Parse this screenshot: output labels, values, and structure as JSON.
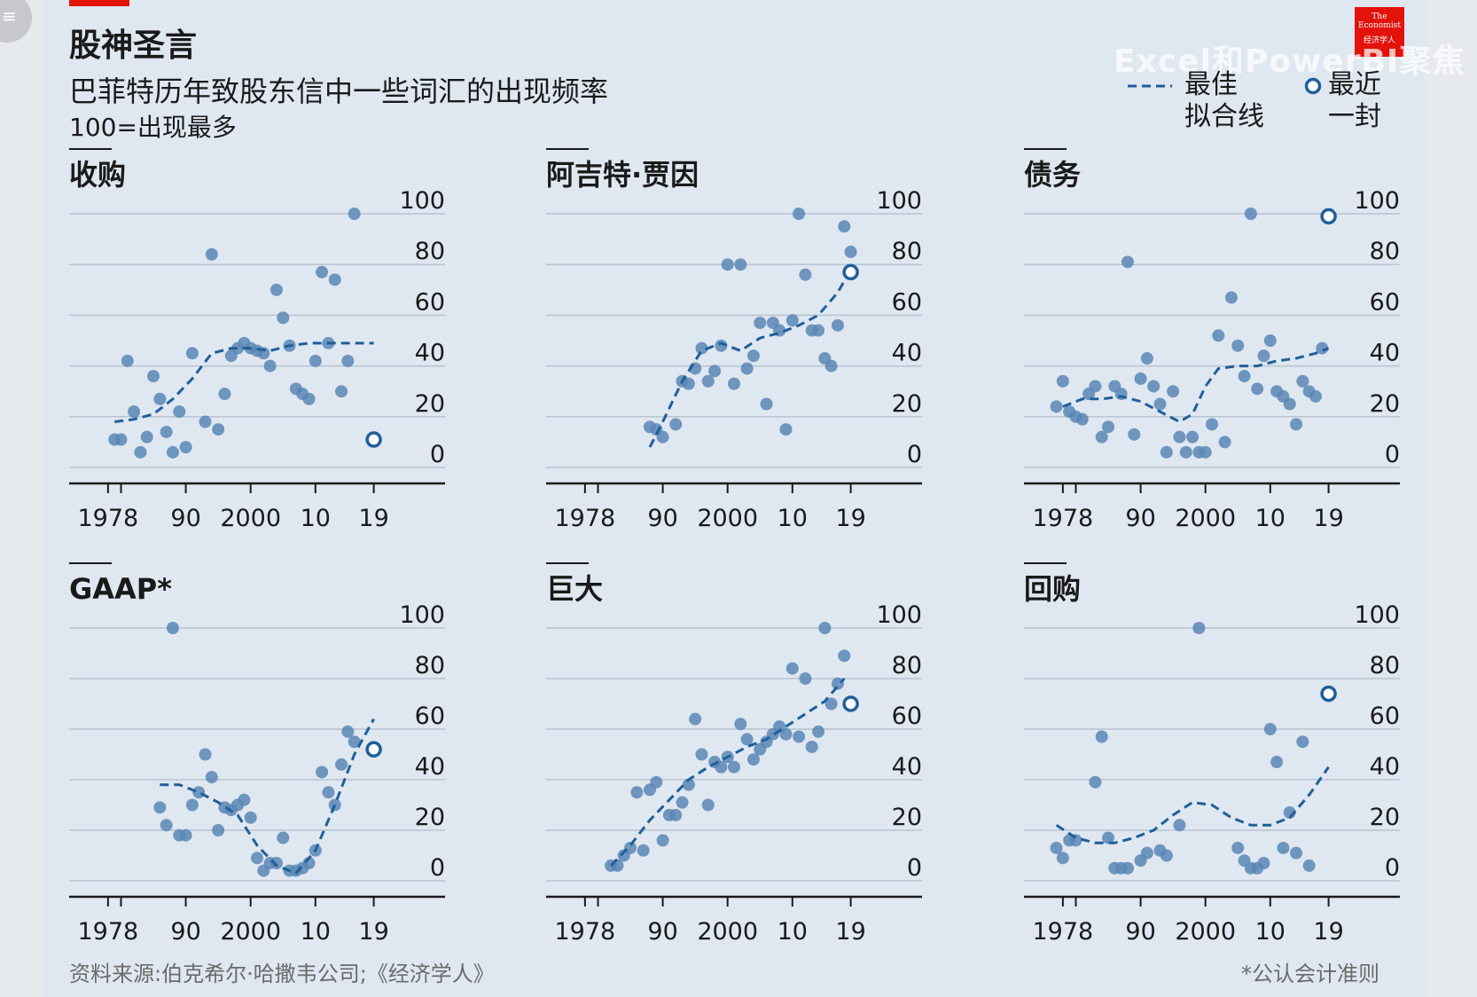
{
  "header": {
    "title": "股神圣言",
    "subtitle": "巴菲特历年致股东信中一些词汇的出现频率",
    "note": "100=出现最多"
  },
  "legend": {
    "fit_label_1": "最佳",
    "fit_label_2": "拟合线",
    "recent_label_1": "最近",
    "recent_label_2": "一封"
  },
  "footer": {
    "source": "资料来源:伯克希尔·哈撒韦公司;《经济学人》",
    "footnote": "*公认会计准则"
  },
  "logo": {
    "line1": "The Economist",
    "line2": "经济学人"
  },
  "watermark": "Excel和PowerBI聚焦",
  "colors": {
    "dot": "#5b86b4",
    "line": "#1f5f99",
    "axis": "#1a1a1a",
    "grid": "#b8c4d1",
    "accent": "#e3120b"
  },
  "chart_data": [
    {
      "type": "scatter",
      "title": "收购",
      "xticks": [
        1978,
        1990,
        2000,
        2010,
        2019
      ],
      "xtick_labels": [
        "1978",
        "90",
        "2000",
        "10",
        "19"
      ],
      "yticks": [
        0,
        20,
        40,
        60,
        80,
        100
      ],
      "xlim": [
        1972,
        2030
      ],
      "ylim": [
        0,
        100
      ],
      "points": [
        [
          1979,
          11
        ],
        [
          1980,
          11
        ],
        [
          1981,
          42
        ],
        [
          1982,
          22
        ],
        [
          1983,
          6
        ],
        [
          1984,
          12
        ],
        [
          1985,
          36
        ],
        [
          1986,
          27
        ],
        [
          1987,
          14
        ],
        [
          1988,
          6
        ],
        [
          1989,
          22
        ],
        [
          1990,
          8
        ],
        [
          1991,
          45
        ],
        [
          1993,
          18
        ],
        [
          1994,
          84
        ],
        [
          1995,
          15
        ],
        [
          1996,
          29
        ],
        [
          1997,
          44
        ],
        [
          1998,
          47
        ],
        [
          1999,
          49
        ],
        [
          2000,
          47
        ],
        [
          2001,
          46
        ],
        [
          2002,
          45
        ],
        [
          2003,
          40
        ],
        [
          2004,
          70
        ],
        [
          2005,
          59
        ],
        [
          2006,
          48
        ],
        [
          2007,
          31
        ],
        [
          2008,
          29
        ],
        [
          2009,
          27
        ],
        [
          2010,
          42
        ],
        [
          2011,
          77
        ],
        [
          2012,
          49
        ],
        [
          2013,
          74
        ],
        [
          2014,
          30
        ],
        [
          2015,
          42
        ],
        [
          2016,
          100
        ]
      ],
      "fit": [
        [
          1979,
          18
        ],
        [
          1982,
          19
        ],
        [
          1985,
          21
        ],
        [
          1988,
          27
        ],
        [
          1991,
          35
        ],
        [
          1994,
          45
        ],
        [
          1997,
          47
        ],
        [
          2000,
          47
        ],
        [
          2003,
          46
        ],
        [
          2006,
          48
        ],
        [
          2009,
          49
        ],
        [
          2012,
          49
        ],
        [
          2016,
          49
        ],
        [
          2019,
          49
        ]
      ],
      "recent": [
        2019,
        11
      ]
    },
    {
      "type": "scatter",
      "title": "阿吉特·贾因",
      "xticks": [
        1978,
        1990,
        2000,
        2010,
        2019
      ],
      "xtick_labels": [
        "1978",
        "90",
        "2000",
        "10",
        "19"
      ],
      "yticks": [
        0,
        20,
        40,
        60,
        80,
        100
      ],
      "xlim": [
        1972,
        2030
      ],
      "ylim": [
        0,
        100
      ],
      "points": [
        [
          1988,
          16
        ],
        [
          1989,
          15
        ],
        [
          1990,
          12
        ],
        [
          1992,
          17
        ],
        [
          1993,
          34
        ],
        [
          1994,
          33
        ],
        [
          1995,
          39
        ],
        [
          1996,
          47
        ],
        [
          1997,
          34
        ],
        [
          1998,
          38
        ],
        [
          1999,
          48
        ],
        [
          2000,
          80
        ],
        [
          2001,
          33
        ],
        [
          2002,
          80
        ],
        [
          2003,
          39
        ],
        [
          2004,
          44
        ],
        [
          2005,
          57
        ],
        [
          2006,
          25
        ],
        [
          2007,
          57
        ],
        [
          2008,
          54
        ],
        [
          2009,
          15
        ],
        [
          2010,
          58
        ],
        [
          2011,
          100
        ],
        [
          2012,
          76
        ],
        [
          2013,
          54
        ],
        [
          2014,
          54
        ],
        [
          2015,
          43
        ],
        [
          2016,
          40
        ],
        [
          2017,
          56
        ],
        [
          2018,
          95
        ],
        [
          2019,
          85
        ]
      ],
      "fit": [
        [
          1988,
          8
        ],
        [
          1990,
          18
        ],
        [
          1993,
          34
        ],
        [
          1996,
          46
        ],
        [
          1999,
          49
        ],
        [
          2002,
          46
        ],
        [
          2005,
          51
        ],
        [
          2008,
          53
        ],
        [
          2011,
          56
        ],
        [
          2014,
          60
        ],
        [
          2017,
          69
        ],
        [
          2019,
          78
        ]
      ],
      "recent": [
        2019,
        77
      ]
    },
    {
      "type": "scatter",
      "title": "债务",
      "xticks": [
        1978,
        1990,
        2000,
        2010,
        2019
      ],
      "xtick_labels": [
        "1978",
        "90",
        "2000",
        "10",
        "19"
      ],
      "yticks": [
        0,
        20,
        40,
        60,
        80,
        100
      ],
      "xlim": [
        1972,
        2030
      ],
      "ylim": [
        0,
        100
      ],
      "points": [
        [
          1977,
          24
        ],
        [
          1978,
          34
        ],
        [
          1979,
          22
        ],
        [
          1980,
          20
        ],
        [
          1981,
          19
        ],
        [
          1982,
          29
        ],
        [
          1983,
          32
        ],
        [
          1984,
          12
        ],
        [
          1985,
          16
        ],
        [
          1986,
          32
        ],
        [
          1987,
          29
        ],
        [
          1988,
          81
        ],
        [
          1989,
          13
        ],
        [
          1990,
          35
        ],
        [
          1991,
          43
        ],
        [
          1992,
          32
        ],
        [
          1993,
          25
        ],
        [
          1994,
          6
        ],
        [
          1995,
          30
        ],
        [
          1996,
          12
        ],
        [
          1997,
          6
        ],
        [
          1998,
          12
        ],
        [
          1999,
          6
        ],
        [
          2000,
          6
        ],
        [
          2001,
          17
        ],
        [
          2002,
          52
        ],
        [
          2003,
          10
        ],
        [
          2004,
          67
        ],
        [
          2005,
          48
        ],
        [
          2006,
          36
        ],
        [
          2007,
          100
        ],
        [
          2008,
          31
        ],
        [
          2009,
          44
        ],
        [
          2010,
          50
        ],
        [
          2011,
          30
        ],
        [
          2012,
          28
        ],
        [
          2013,
          25
        ],
        [
          2014,
          17
        ],
        [
          2015,
          34
        ],
        [
          2016,
          30
        ],
        [
          2017,
          28
        ],
        [
          2018,
          47
        ]
      ],
      "fit": [
        [
          1978,
          24
        ],
        [
          1981,
          27
        ],
        [
          1984,
          27
        ],
        [
          1987,
          28
        ],
        [
          1990,
          26
        ],
        [
          1993,
          22
        ],
        [
          1996,
          18
        ],
        [
          1998,
          21
        ],
        [
          2000,
          32
        ],
        [
          2002,
          39
        ],
        [
          2005,
          40
        ],
        [
          2008,
          40
        ],
        [
          2011,
          42
        ],
        [
          2014,
          43
        ],
        [
          2017,
          45
        ],
        [
          2019,
          47
        ]
      ],
      "recent": [
        2019,
        99
      ]
    },
    {
      "type": "scatter",
      "title": "GAAP*",
      "xticks": [
        1978,
        1990,
        2000,
        2010,
        2019
      ],
      "xtick_labels": [
        "1978",
        "90",
        "2000",
        "10",
        "19"
      ],
      "yticks": [
        0,
        20,
        40,
        60,
        80,
        100
      ],
      "xlim": [
        1972,
        2030
      ],
      "ylim": [
        0,
        100
      ],
      "points": [
        [
          1986,
          29
        ],
        [
          1987,
          22
        ],
        [
          1988,
          100
        ],
        [
          1989,
          18
        ],
        [
          1990,
          18
        ],
        [
          1991,
          30
        ],
        [
          1992,
          35
        ],
        [
          1993,
          50
        ],
        [
          1994,
          41
        ],
        [
          1995,
          20
        ],
        [
          1996,
          29
        ],
        [
          1997,
          28
        ],
        [
          1998,
          30
        ],
        [
          1999,
          32
        ],
        [
          2000,
          25
        ],
        [
          2001,
          9
        ],
        [
          2002,
          4
        ],
        [
          2003,
          7
        ],
        [
          2004,
          7
        ],
        [
          2005,
          17
        ],
        [
          2006,
          4
        ],
        [
          2007,
          4
        ],
        [
          2008,
          5
        ],
        [
          2009,
          7
        ],
        [
          2010,
          12
        ],
        [
          2011,
          43
        ],
        [
          2012,
          35
        ],
        [
          2013,
          30
        ],
        [
          2014,
          46
        ],
        [
          2015,
          59
        ],
        [
          2016,
          55
        ]
      ],
      "fit": [
        [
          1986,
          38
        ],
        [
          1989,
          38
        ],
        [
          1992,
          35
        ],
        [
          1995,
          31
        ],
        [
          1998,
          26
        ],
        [
          2001,
          14
        ],
        [
          2004,
          6
        ],
        [
          2007,
          3
        ],
        [
          2010,
          12
        ],
        [
          2013,
          30
        ],
        [
          2016,
          50
        ],
        [
          2019,
          64
        ]
      ],
      "recent": [
        2019,
        52
      ]
    },
    {
      "type": "scatter",
      "title": "巨大",
      "xticks": [
        1978,
        1990,
        2000,
        2010,
        2019
      ],
      "xtick_labels": [
        "1978",
        "90",
        "2000",
        "10",
        "19"
      ],
      "yticks": [
        0,
        20,
        40,
        60,
        80,
        100
      ],
      "xlim": [
        1972,
        2030
      ],
      "ylim": [
        0,
        100
      ],
      "points": [
        [
          1982,
          6
        ],
        [
          1983,
          6
        ],
        [
          1984,
          10
        ],
        [
          1985,
          13
        ],
        [
          1986,
          35
        ],
        [
          1987,
          12
        ],
        [
          1988,
          36
        ],
        [
          1989,
          39
        ],
        [
          1990,
          16
        ],
        [
          1991,
          26
        ],
        [
          1992,
          26
        ],
        [
          1993,
          31
        ],
        [
          1994,
          38
        ],
        [
          1995,
          64
        ],
        [
          1996,
          50
        ],
        [
          1997,
          30
        ],
        [
          1998,
          47
        ],
        [
          1999,
          45
        ],
        [
          2000,
          49
        ],
        [
          2001,
          45
        ],
        [
          2002,
          62
        ],
        [
          2003,
          56
        ],
        [
          2004,
          48
        ],
        [
          2005,
          52
        ],
        [
          2006,
          55
        ],
        [
          2007,
          58
        ],
        [
          2008,
          61
        ],
        [
          2009,
          58
        ],
        [
          2010,
          84
        ],
        [
          2011,
          57
        ],
        [
          2012,
          80
        ],
        [
          2013,
          53
        ],
        [
          2014,
          59
        ],
        [
          2015,
          100
        ],
        [
          2016,
          70
        ],
        [
          2017,
          78
        ],
        [
          2018,
          89
        ]
      ],
      "fit": [
        [
          1982,
          6
        ],
        [
          1985,
          14
        ],
        [
          1988,
          24
        ],
        [
          1991,
          32
        ],
        [
          1994,
          40
        ],
        [
          1997,
          45
        ],
        [
          2000,
          49
        ],
        [
          2003,
          53
        ],
        [
          2006,
          56
        ],
        [
          2009,
          61
        ],
        [
          2012,
          66
        ],
        [
          2015,
          71
        ],
        [
          2018,
          80
        ]
      ],
      "recent": [
        2019,
        70
      ]
    },
    {
      "type": "scatter",
      "title": "回购",
      "xticks": [
        1978,
        1990,
        2000,
        2010,
        2019
      ],
      "xtick_labels": [
        "1978",
        "90",
        "2000",
        "10",
        "19"
      ],
      "yticks": [
        0,
        20,
        40,
        60,
        80,
        100
      ],
      "xlim": [
        1972,
        2030
      ],
      "ylim": [
        0,
        100
      ],
      "points": [
        [
          1977,
          13
        ],
        [
          1978,
          9
        ],
        [
          1979,
          16
        ],
        [
          1980,
          16
        ],
        [
          1983,
          39
        ],
        [
          1984,
          57
        ],
        [
          1985,
          17
        ],
        [
          1986,
          5
        ],
        [
          1987,
          5
        ],
        [
          1988,
          5
        ],
        [
          1990,
          8
        ],
        [
          1991,
          11
        ],
        [
          1993,
          12
        ],
        [
          1994,
          10
        ],
        [
          1996,
          22
        ],
        [
          1999,
          100
        ],
        [
          2005,
          13
        ],
        [
          2006,
          8
        ],
        [
          2007,
          5
        ],
        [
          2008,
          5
        ],
        [
          2009,
          7
        ],
        [
          2010,
          60
        ],
        [
          2011,
          47
        ],
        [
          2012,
          13
        ],
        [
          2013,
          27
        ],
        [
          2014,
          11
        ],
        [
          2015,
          55
        ],
        [
          2016,
          6
        ]
      ],
      "fit": [
        [
          1977,
          22
        ],
        [
          1980,
          17
        ],
        [
          1983,
          15
        ],
        [
          1986,
          15
        ],
        [
          1989,
          17
        ],
        [
          1992,
          20
        ],
        [
          1995,
          26
        ],
        [
          1998,
          31
        ],
        [
          2001,
          30
        ],
        [
          2004,
          25
        ],
        [
          2007,
          22
        ],
        [
          2010,
          22
        ],
        [
          2013,
          25
        ],
        [
          2016,
          34
        ],
        [
          2019,
          45
        ]
      ],
      "recent": [
        2019,
        74
      ]
    }
  ]
}
